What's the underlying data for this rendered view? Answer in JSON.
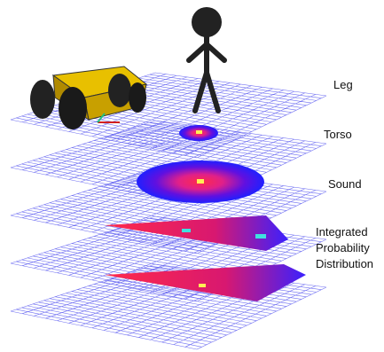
{
  "labels": {
    "leg": "Leg",
    "torso": "Torso",
    "sound": "Sound",
    "integrated": [
      "Integrated",
      "Probability",
      "Distribution"
    ]
  }
}
